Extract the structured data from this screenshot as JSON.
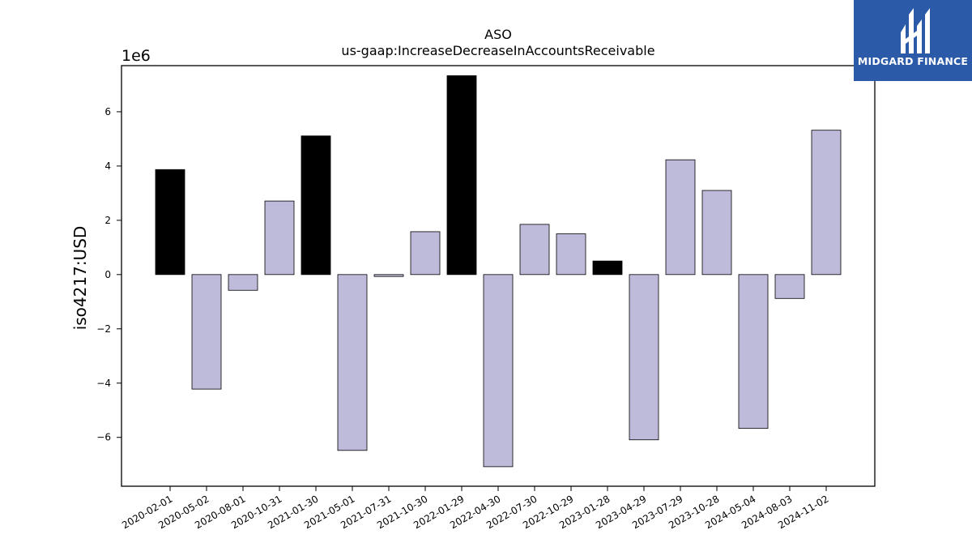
{
  "logo": {
    "text": "MIDGARD FINANCE",
    "background": "#2b5aa8"
  },
  "chart_data": {
    "type": "bar",
    "title": "ASO",
    "subtitle": "us-gaap:IncreaseDecreaseInAccountsReceivable",
    "xlabel": "",
    "ylabel": "iso4217:USD",
    "y_scale_label": "1e6",
    "ylim": [
      -7.8,
      7.7
    ],
    "yticks": [
      -6,
      -4,
      -2,
      0,
      2,
      4,
      6
    ],
    "ytick_labels": [
      "−6",
      "−4",
      "−2",
      "0",
      "2",
      "4",
      "6"
    ],
    "grid": false,
    "categories": [
      "2020-02-01",
      "2020-05-02",
      "2020-08-01",
      "2020-10-31",
      "2021-01-30",
      "2021-05-01",
      "2021-07-31",
      "2021-10-30",
      "2022-01-29",
      "2022-04-30",
      "2022-07-30",
      "2022-10-29",
      "2023-01-28",
      "2023-04-29",
      "2023-07-29",
      "2023-10-28",
      "2024-05-04",
      "2024-08-03",
      "2024-11-02"
    ],
    "values": [
      3.87,
      -4.22,
      -0.58,
      2.71,
      5.11,
      -6.48,
      -0.07,
      1.58,
      7.33,
      -7.08,
      1.85,
      1.5,
      0.5,
      -6.09,
      4.23,
      3.1,
      -5.67,
      -0.88,
      5.32
    ],
    "highlighted": [
      true,
      false,
      false,
      false,
      true,
      false,
      false,
      false,
      true,
      false,
      false,
      false,
      true,
      false,
      false,
      false,
      false,
      false,
      false
    ],
    "colors": {
      "highlight": "#000000",
      "normal": "#bebad9",
      "edge": "#000000"
    }
  }
}
